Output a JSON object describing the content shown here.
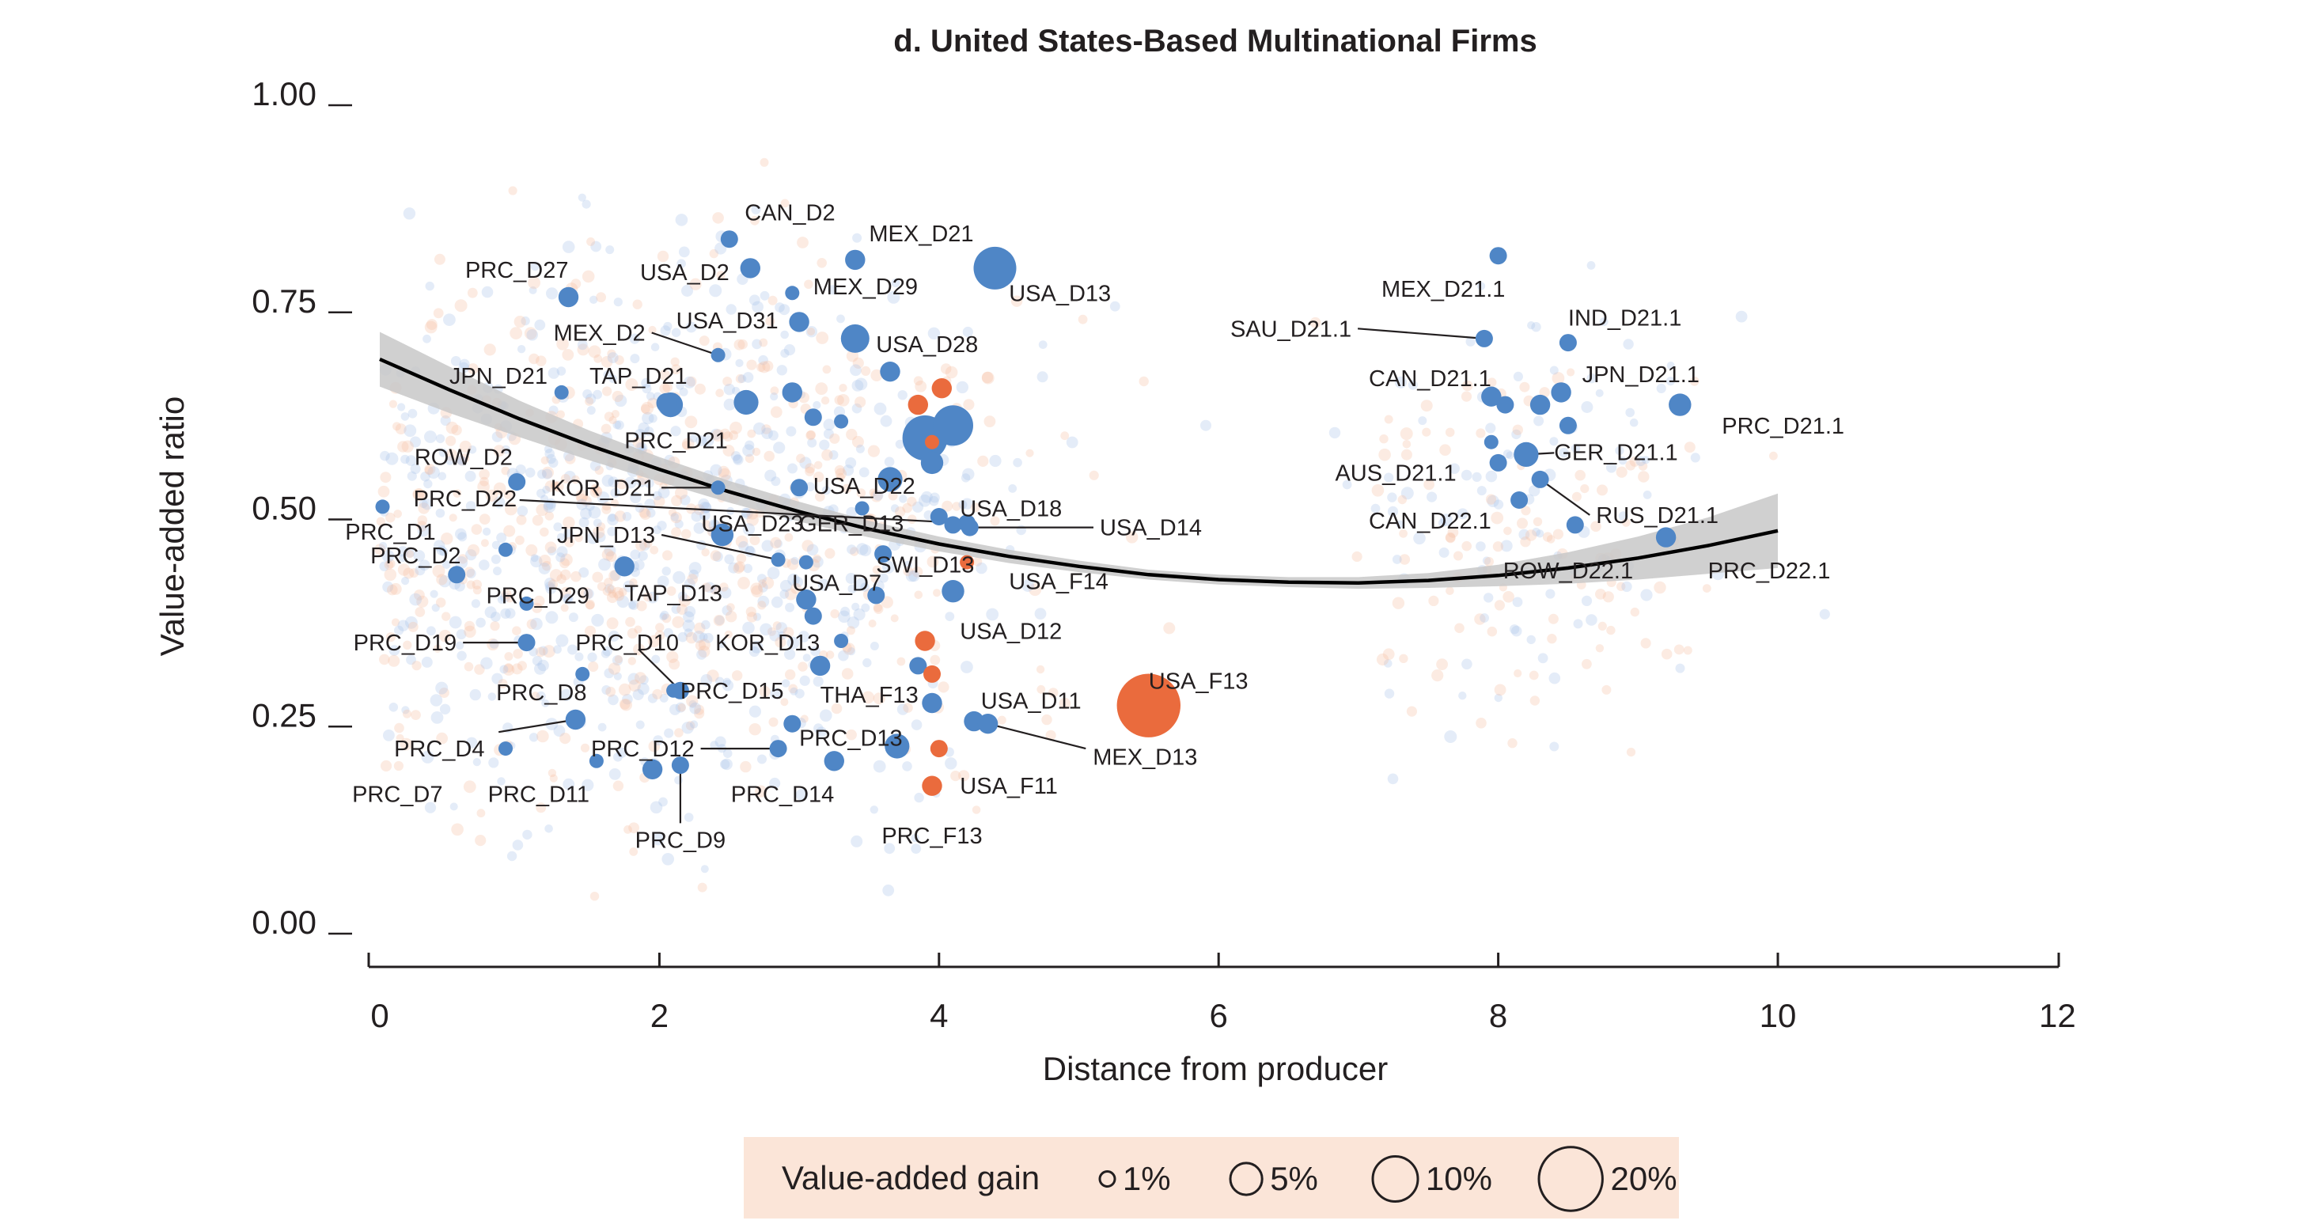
{
  "colors": {
    "highlight_blue": "#4f86c6",
    "highlight_orange": "#ea6b3d",
    "background_blue": "#aac4e8",
    "background_orange": "#f6c1a4",
    "fit_line": "#000000",
    "confidence_band": "#c8c8c8",
    "legend_bg": "#fbe5d8",
    "text": "#231f20"
  },
  "chart_data": {
    "type": "scatter",
    "title": "d. United States-Based Multinational Firms",
    "xlabel": "Distance from producer",
    "ylabel": "Value-added ratio",
    "xlim": [
      0,
      12
    ],
    "ylim": [
      0,
      1
    ],
    "x_ticks": [
      "0",
      "2",
      "4",
      "6",
      "8",
      "10",
      "12"
    ],
    "y_ticks": [
      "0.00",
      "0.25",
      "0.50",
      "0.75",
      "1.00"
    ],
    "grid": false,
    "legend": {
      "title": "Value-added gain",
      "placement": "bottom-center",
      "entries": [
        {
          "label": "1%",
          "value": 1
        },
        {
          "label": "5%",
          "value": 5
        },
        {
          "label": "10%",
          "value": 10
        },
        {
          "label": "20%",
          "value": 20
        }
      ]
    },
    "fit_line": {
      "x": [
        0,
        0.5,
        1,
        1.5,
        2,
        2.5,
        3,
        3.5,
        4,
        4.5,
        5,
        5.5,
        6,
        6.5,
        7,
        7.5,
        8,
        8.5,
        9,
        9.5,
        10
      ],
      "y": [
        0.68,
        0.643,
        0.608,
        0.576,
        0.547,
        0.52,
        0.496,
        0.475,
        0.457,
        0.442,
        0.43,
        0.42,
        0.414,
        0.411,
        0.41,
        0.413,
        0.419,
        0.428,
        0.44,
        0.455,
        0.473
      ],
      "band_lower": [
        0.647,
        0.615,
        0.586,
        0.558,
        0.532,
        0.507,
        0.484,
        0.465,
        0.448,
        0.434,
        0.423,
        0.414,
        0.408,
        0.405,
        0.403,
        0.404,
        0.406,
        0.409,
        0.414,
        0.421,
        0.428
      ],
      "band_upper": [
        0.713,
        0.671,
        0.63,
        0.594,
        0.562,
        0.533,
        0.508,
        0.485,
        0.466,
        0.45,
        0.437,
        0.426,
        0.42,
        0.417,
        0.417,
        0.422,
        0.432,
        0.447,
        0.466,
        0.489,
        0.518
      ]
    },
    "points": [
      {
        "label": "CAN_D2",
        "x": 2.5,
        "y": 0.825,
        "gain": 1.5,
        "color": "blue",
        "lx": 2.61,
        "ly": 0.857,
        "anchor": "start"
      },
      {
        "label": "MEX_D21",
        "x": 3.4,
        "y": 0.8,
        "gain": 2,
        "color": "blue",
        "lx": 3.5,
        "ly": 0.832,
        "anchor": "start"
      },
      {
        "label": "USA_D2",
        "x": 2.65,
        "y": 0.79,
        "gain": 2,
        "color": "blue",
        "lx": 2.5,
        "ly": 0.785,
        "anchor": "end"
      },
      {
        "label": "USA_D13",
        "x": 4.4,
        "y": 0.79,
        "gain": 9,
        "color": "blue",
        "lx": 4.5,
        "ly": 0.76,
        "anchor": "start"
      },
      {
        "label": "PRC_D27",
        "x": 1.35,
        "y": 0.755,
        "gain": 2,
        "color": "blue",
        "lx": 1.35,
        "ly": 0.788,
        "anchor": "end"
      },
      {
        "label": "MEX_D29",
        "x": 2.95,
        "y": 0.76,
        "gain": 1,
        "color": "blue",
        "lx": 3.1,
        "ly": 0.768,
        "anchor": "start"
      },
      {
        "label": "USA_D31",
        "x": 3.0,
        "y": 0.725,
        "gain": 2,
        "color": "blue",
        "lx": 2.85,
        "ly": 0.727,
        "anchor": "end"
      },
      {
        "label": "USA_D28",
        "x": 3.4,
        "y": 0.705,
        "gain": 4,
        "color": "blue",
        "lx": 3.55,
        "ly": 0.698,
        "anchor": "start"
      },
      {
        "label": "MEX_D2",
        "x": 2.42,
        "y": 0.685,
        "gain": 1,
        "color": "blue",
        "lx": 1.9,
        "ly": 0.712,
        "anchor": "end",
        "leader": true
      },
      {
        "label": "JPN_D21",
        "x": 1.3,
        "y": 0.64,
        "gain": 1,
        "color": "blue",
        "lx": 1.2,
        "ly": 0.66,
        "anchor": "end"
      },
      {
        "label": "TAP_D21",
        "x": 2.08,
        "y": 0.625,
        "gain": 3,
        "color": "blue",
        "lx": 1.5,
        "ly": 0.66,
        "anchor": "start"
      },
      {
        "label": "PRC_D21",
        "x": 2.62,
        "y": 0.628,
        "gain": 3,
        "color": "blue",
        "lx": 1.75,
        "ly": 0.582,
        "anchor": "start"
      },
      {
        "label": "USA_D22",
        "x": 3.65,
        "y": 0.535,
        "gain": 3,
        "color": "blue",
        "lx": 3.1,
        "ly": 0.527,
        "anchor": "start"
      },
      {
        "label": "ROW_D2",
        "x": 0.98,
        "y": 0.532,
        "gain": 1.5,
        "color": "blue",
        "lx": 0.95,
        "ly": 0.562,
        "anchor": "end"
      },
      {
        "label": "KOR_D21",
        "x": 2.42,
        "y": 0.525,
        "gain": 1,
        "color": "blue",
        "lx": 1.97,
        "ly": 0.525,
        "anchor": "end",
        "leader": true
      },
      {
        "label": "USA_D18",
        "x": 4.0,
        "y": 0.49,
        "gain": 1.5,
        "color": "blue",
        "lx": 4.15,
        "ly": 0.5,
        "anchor": "start"
      },
      {
        "label": "PRC_D1",
        "x": 0.02,
        "y": 0.502,
        "gain": 1,
        "color": "blue",
        "lx": 0.4,
        "ly": 0.472,
        "anchor": "end"
      },
      {
        "label": "PRC_D22",
        "x": 4.2,
        "y": 0.482,
        "gain": 1.5,
        "color": "blue",
        "lx": 0.98,
        "ly": 0.512,
        "anchor": "end",
        "leader": true,
        "lxl": 1.0,
        "lyl": 0.51
      },
      {
        "label": "USA_D23",
        "x": 2.45,
        "y": 0.468,
        "gain": 2.5,
        "color": "blue",
        "lx": 2.3,
        "ly": 0.482,
        "anchor": "start"
      },
      {
        "label": "GER_D13",
        "x": 4.1,
        "y": 0.48,
        "gain": 1.5,
        "color": "blue",
        "lx": 3.0,
        "ly": 0.482,
        "anchor": "start"
      },
      {
        "label": "USA_D14",
        "x": 4.22,
        "y": 0.477,
        "gain": 1.5,
        "color": "blue",
        "lx": 5.15,
        "ly": 0.477,
        "anchor": "start",
        "leader": true
      },
      {
        "label": "JPN_D13",
        "x": 2.85,
        "y": 0.438,
        "gain": 1,
        "color": "blue",
        "lx": 1.97,
        "ly": 0.468,
        "anchor": "end",
        "leader": true
      },
      {
        "label": "PRC_D2",
        "x": 0.55,
        "y": 0.42,
        "gain": 1.5,
        "color": "blue",
        "lx": 0.58,
        "ly": 0.443,
        "anchor": "end"
      },
      {
        "label": "SWI_D13",
        "x": 3.6,
        "y": 0.445,
        "gain": 1.5,
        "color": "blue",
        "lx": 3.55,
        "ly": 0.432,
        "anchor": "start"
      },
      {
        "label": "USA_D7",
        "x": 3.05,
        "y": 0.435,
        "gain": 1,
        "color": "blue",
        "lx": 2.95,
        "ly": 0.41,
        "anchor": "start"
      },
      {
        "label": "USA_F14",
        "x": 4.2,
        "y": 0.435,
        "gain": 1,
        "color": "orange",
        "lx": 4.5,
        "ly": 0.412,
        "anchor": "start"
      },
      {
        "label": "PRC_D29",
        "x": 1.75,
        "y": 0.43,
        "gain": 2,
        "color": "blue",
        "lx": 1.5,
        "ly": 0.395,
        "anchor": "end"
      },
      {
        "label": "TAP_D13",
        "x": 3.05,
        "y": 0.39,
        "gain": 2,
        "color": "blue",
        "lx": 2.45,
        "ly": 0.398,
        "anchor": "end"
      },
      {
        "label": "USA_D12",
        "x": 4.1,
        "y": 0.4,
        "gain": 2.5,
        "color": "blue",
        "lx": 4.15,
        "ly": 0.352,
        "anchor": "start"
      },
      {
        "label": "PRC_D19",
        "x": 1.05,
        "y": 0.338,
        "gain": 1.5,
        "color": "blue",
        "lx": 0.55,
        "ly": 0.338,
        "anchor": "end",
        "leader": true
      },
      {
        "label": "PRC_D10",
        "x": 2.15,
        "y": 0.28,
        "gain": 1.5,
        "color": "blue",
        "lx": 1.4,
        "ly": 0.338,
        "anchor": "start",
        "leader": true,
        "lxl": 1.85,
        "lyl": 0.33
      },
      {
        "label": "KOR_D13",
        "x": 3.15,
        "y": 0.31,
        "gain": 2,
        "color": "blue",
        "lx": 2.4,
        "ly": 0.338,
        "anchor": "start"
      },
      {
        "label": "PRC_D8",
        "x": 1.45,
        "y": 0.3,
        "gain": 1,
        "color": "blue",
        "lx": 1.48,
        "ly": 0.278,
        "anchor": "end"
      },
      {
        "label": "PRC_D15",
        "x": 2.1,
        "y": 0.28,
        "gain": 1,
        "color": "blue",
        "lx": 2.15,
        "ly": 0.28,
        "anchor": "start"
      },
      {
        "label": "THA_F13",
        "x": 3.95,
        "y": 0.3,
        "gain": 1.5,
        "color": "orange",
        "lx": 3.15,
        "ly": 0.275,
        "anchor": "start"
      },
      {
        "label": "USA_D11",
        "x": 4.25,
        "y": 0.243,
        "gain": 2,
        "color": "blue",
        "lx": 4.3,
        "ly": 0.268,
        "anchor": "start"
      },
      {
        "label": "USA_F13",
        "x": 5.5,
        "y": 0.262,
        "gain": 20,
        "color": "orange",
        "lx": 5.5,
        "ly": 0.292,
        "anchor": "start"
      },
      {
        "label": "PRC_D4",
        "x": 1.4,
        "y": 0.245,
        "gain": 2,
        "color": "blue",
        "lx": 0.75,
        "ly": 0.21,
        "anchor": "end",
        "leader": true,
        "lxl": 0.85,
        "lyl": 0.23
      },
      {
        "label": "PRC_D13",
        "x": 3.7,
        "y": 0.213,
        "gain": 3,
        "color": "blue",
        "lx": 3.0,
        "ly": 0.223,
        "anchor": "start"
      },
      {
        "label": "PRC_D12",
        "x": 2.85,
        "y": 0.21,
        "gain": 1.5,
        "color": "blue",
        "lx": 2.25,
        "ly": 0.21,
        "anchor": "end",
        "leader": true
      },
      {
        "label": "MEX_D13",
        "x": 4.35,
        "y": 0.24,
        "gain": 2,
        "color": "blue",
        "lx": 5.1,
        "ly": 0.2,
        "anchor": "start",
        "leader": true,
        "lxl": 5.05,
        "lyl": 0.21
      },
      {
        "label": "PRC_D7",
        "x": 0.9,
        "y": 0.21,
        "gain": 1,
        "color": "blue",
        "lx": 0.45,
        "ly": 0.155,
        "anchor": "end"
      },
      {
        "label": "PRC_D11",
        "x": 1.55,
        "y": 0.195,
        "gain": 1,
        "color": "blue",
        "lx": 1.5,
        "ly": 0.155,
        "anchor": "end"
      },
      {
        "label": "PRC_D14",
        "x": 3.25,
        "y": 0.195,
        "gain": 2,
        "color": "blue",
        "lx": 3.25,
        "ly": 0.155,
        "anchor": "end"
      },
      {
        "label": "USA_F11",
        "x": 4.0,
        "y": 0.21,
        "gain": 1.5,
        "color": "orange",
        "lx": 4.15,
        "ly": 0.165,
        "anchor": "start"
      },
      {
        "label": "PRC_D9",
        "x": 2.15,
        "y": 0.19,
        "gain": 1.5,
        "color": "blue",
        "lx": 2.15,
        "ly": 0.1,
        "anchor": "middle",
        "leader": true,
        "lxl": 2.15,
        "lyl": 0.12
      },
      {
        "label": "PRC_F13",
        "x": 3.95,
        "y": 0.165,
        "gain": 2,
        "color": "orange",
        "lx": 3.95,
        "ly": 0.105,
        "anchor": "middle"
      },
      {
        "label": "MEX_D21.1",
        "x": 8.0,
        "y": 0.805,
        "gain": 1.5,
        "color": "blue",
        "lx": 8.05,
        "ly": 0.765,
        "anchor": "end"
      },
      {
        "label": "SAU_D21.1",
        "x": 7.9,
        "y": 0.705,
        "gain": 1.5,
        "color": "blue",
        "lx": 6.95,
        "ly": 0.717,
        "anchor": "end",
        "leader": true
      },
      {
        "label": "IND_D21.1",
        "x": 8.5,
        "y": 0.7,
        "gain": 1.5,
        "color": "blue",
        "lx": 8.5,
        "ly": 0.73,
        "anchor": "start"
      },
      {
        "label": "CAN_D21.1",
        "x": 7.95,
        "y": 0.635,
        "gain": 2,
        "color": "blue",
        "lx": 7.95,
        "ly": 0.657,
        "anchor": "end"
      },
      {
        "label": "JPN_D21.1",
        "x": 8.45,
        "y": 0.64,
        "gain": 2,
        "color": "blue",
        "lx": 8.6,
        "ly": 0.662,
        "anchor": "start"
      },
      {
        "label": "PRC_D21.1",
        "x": 9.3,
        "y": 0.625,
        "gain": 2.5,
        "color": "blue",
        "lx": 9.6,
        "ly": 0.6,
        "anchor": "start"
      },
      {
        "label": "GER_D21.1",
        "x": 8.2,
        "y": 0.565,
        "gain": 3,
        "color": "blue",
        "lx": 8.4,
        "ly": 0.568,
        "anchor": "start",
        "leader": true,
        "lxl": 8.4,
        "lyl": 0.567
      },
      {
        "label": "AUS_D21.1",
        "x": 8.0,
        "y": 0.555,
        "gain": 1.5,
        "color": "blue",
        "lx": 7.7,
        "ly": 0.543,
        "anchor": "end"
      },
      {
        "label": "RUS_D21.1",
        "x": 8.3,
        "y": 0.535,
        "gain": 1.5,
        "color": "blue",
        "lx": 8.7,
        "ly": 0.492,
        "anchor": "start",
        "leader": true
      },
      {
        "label": "CAN_D22.1",
        "x": 8.15,
        "y": 0.51,
        "gain": 1.5,
        "color": "blue",
        "lx": 7.95,
        "ly": 0.485,
        "anchor": "end"
      },
      {
        "label": "ROW_D22.1",
        "x": 8.55,
        "y": 0.48,
        "gain": 1.5,
        "color": "blue",
        "lx": 8.5,
        "ly": 0.425,
        "anchor": "middle"
      },
      {
        "label": "PRC_D22.1",
        "x": 9.2,
        "y": 0.465,
        "gain": 2,
        "color": "blue",
        "lx": 9.5,
        "ly": 0.425,
        "anchor": "start"
      }
    ],
    "unlabeled_points": [
      {
        "x": 2.05,
        "y": 0.627,
        "gain": 2,
        "color": "blue"
      },
      {
        "x": 2.95,
        "y": 0.64,
        "gain": 2,
        "color": "blue"
      },
      {
        "x": 3.1,
        "y": 0.61,
        "gain": 1.5,
        "color": "blue"
      },
      {
        "x": 3.3,
        "y": 0.605,
        "gain": 1,
        "color": "blue"
      },
      {
        "x": 3.65,
        "y": 0.665,
        "gain": 2,
        "color": "blue"
      },
      {
        "x": 3.9,
        "y": 0.585,
        "gain": 10,
        "color": "blue"
      },
      {
        "x": 4.1,
        "y": 0.6,
        "gain": 8,
        "color": "blue"
      },
      {
        "x": 3.95,
        "y": 0.555,
        "gain": 2.5,
        "color": "blue"
      },
      {
        "x": 3.85,
        "y": 0.625,
        "gain": 2,
        "color": "orange"
      },
      {
        "x": 4.02,
        "y": 0.645,
        "gain": 2,
        "color": "orange"
      },
      {
        "x": 3.95,
        "y": 0.58,
        "gain": 1,
        "color": "orange"
      },
      {
        "x": 3.45,
        "y": 0.5,
        "gain": 1,
        "color": "blue"
      },
      {
        "x": 3.0,
        "y": 0.525,
        "gain": 1.5,
        "color": "blue"
      },
      {
        "x": 3.55,
        "y": 0.395,
        "gain": 1.5,
        "color": "blue"
      },
      {
        "x": 3.1,
        "y": 0.37,
        "gain": 1.5,
        "color": "blue"
      },
      {
        "x": 3.3,
        "y": 0.34,
        "gain": 1,
        "color": "blue"
      },
      {
        "x": 3.9,
        "y": 0.34,
        "gain": 2,
        "color": "orange"
      },
      {
        "x": 3.85,
        "y": 0.31,
        "gain": 1.5,
        "color": "blue"
      },
      {
        "x": 3.95,
        "y": 0.265,
        "gain": 2,
        "color": "blue"
      },
      {
        "x": 2.95,
        "y": 0.24,
        "gain": 1.5,
        "color": "blue"
      },
      {
        "x": 1.95,
        "y": 0.185,
        "gain": 2,
        "color": "blue"
      },
      {
        "x": 1.05,
        "y": 0.385,
        "gain": 1,
        "color": "blue"
      },
      {
        "x": 0.9,
        "y": 0.45,
        "gain": 1,
        "color": "blue"
      },
      {
        "x": 7.95,
        "y": 0.58,
        "gain": 1,
        "color": "blue"
      },
      {
        "x": 8.05,
        "y": 0.625,
        "gain": 1.5,
        "color": "blue"
      },
      {
        "x": 8.3,
        "y": 0.625,
        "gain": 2,
        "color": "blue"
      },
      {
        "x": 8.5,
        "y": 0.6,
        "gain": 1.5,
        "color": "blue"
      }
    ]
  }
}
